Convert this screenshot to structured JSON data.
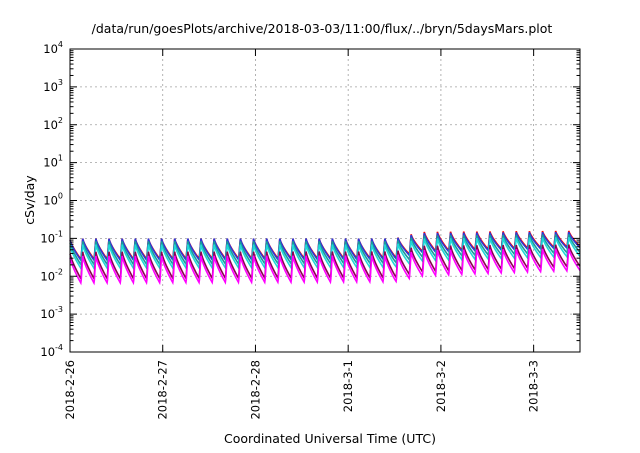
{
  "chart_data": {
    "type": "line",
    "title": "/data/run/goesPlots/archive/2018-03-03/11:00/flux/../bryn/5daysMars.plot",
    "xlabel": "Coordinated Universal Time (UTC)",
    "ylabel": "cSv/day",
    "yscale": "log",
    "ylim": [
      0.0001,
      10000
    ],
    "xlim": [
      "2018-02-26T00:00",
      "2018-03-03T12:00"
    ],
    "grid": true,
    "legend": "none",
    "y_ticks": [
      {
        "value": 0.0001,
        "base": "10",
        "exp": "-4"
      },
      {
        "value": 0.001,
        "base": "10",
        "exp": "-3"
      },
      {
        "value": 0.01,
        "base": "10",
        "exp": "-2"
      },
      {
        "value": 0.1,
        "base": "10",
        "exp": "-1"
      },
      {
        "value": 1,
        "base": "10",
        "exp": "0"
      },
      {
        "value": 10,
        "base": "10",
        "exp": "1"
      },
      {
        "value": 100,
        "base": "10",
        "exp": "2"
      },
      {
        "value": 1000,
        "base": "10",
        "exp": "3"
      },
      {
        "value": 10000,
        "base": "10",
        "exp": "4"
      }
    ],
    "x_ticks": [
      "2018-2-26",
      "2018-2-27",
      "2018-2-28",
      "2018-3-1",
      "2018-3-2",
      "2018-3-3"
    ],
    "cycle_hours": 3.4,
    "series": [
      {
        "color": "#ff0000",
        "peak": [
          [
            0,
            0.1
          ],
          [
            3.5,
            0.1
          ],
          [
            3.8,
            0.15
          ],
          [
            5.5,
            0.16
          ]
        ],
        "trough": [
          [
            0,
            0.028
          ],
          [
            3.5,
            0.03
          ],
          [
            3.8,
            0.045
          ],
          [
            5.5,
            0.06
          ]
        ]
      },
      {
        "color": "#2a3ad8",
        "peak": [
          [
            0,
            0.1
          ],
          [
            3.5,
            0.1
          ],
          [
            3.8,
            0.14
          ],
          [
            5.5,
            0.15
          ]
        ],
        "trough": [
          [
            0,
            0.026
          ],
          [
            3.5,
            0.028
          ],
          [
            3.8,
            0.042
          ],
          [
            5.5,
            0.056
          ]
        ]
      },
      {
        "color": "#1a9a9a",
        "peak": [
          [
            0,
            0.085
          ],
          [
            3.5,
            0.085
          ],
          [
            3.8,
            0.12
          ],
          [
            5.5,
            0.13
          ]
        ],
        "trough": [
          [
            0,
            0.02
          ],
          [
            3.5,
            0.022
          ],
          [
            3.8,
            0.032
          ],
          [
            5.5,
            0.042
          ]
        ]
      },
      {
        "color": "#20d8d8",
        "peak": [
          [
            0,
            0.07
          ],
          [
            3.5,
            0.07
          ],
          [
            3.8,
            0.1
          ],
          [
            5.5,
            0.11
          ]
        ],
        "trough": [
          [
            0,
            0.016
          ],
          [
            3.5,
            0.017
          ],
          [
            3.8,
            0.025
          ],
          [
            5.5,
            0.033
          ]
        ]
      },
      {
        "color": "#8b0050",
        "peak": [
          [
            0,
            0.045
          ],
          [
            3.5,
            0.046
          ],
          [
            3.8,
            0.065
          ],
          [
            5.5,
            0.07
          ]
        ],
        "trough": [
          [
            0,
            0.0085
          ],
          [
            3.5,
            0.009
          ],
          [
            3.8,
            0.013
          ],
          [
            5.5,
            0.018
          ]
        ]
      },
      {
        "color": "#ff00ff",
        "peak": [
          [
            0,
            0.035
          ],
          [
            3.5,
            0.036
          ],
          [
            3.8,
            0.05
          ],
          [
            5.5,
            0.055
          ]
        ],
        "trough": [
          [
            0,
            0.0065
          ],
          [
            3.5,
            0.007
          ],
          [
            3.8,
            0.01
          ],
          [
            5.5,
            0.014
          ]
        ]
      }
    ]
  }
}
